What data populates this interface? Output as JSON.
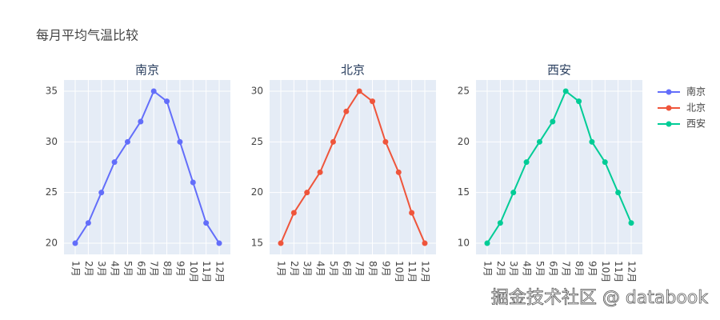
{
  "title": "每月平均气温比较",
  "watermark": "掘金技术社区 @ databook",
  "chart_data": [
    {
      "type": "line",
      "title": "南京",
      "categories": [
        "1月",
        "2月",
        "3月",
        "4月",
        "5月",
        "6月",
        "7月",
        "8月",
        "9月",
        "10月",
        "11月",
        "12月"
      ],
      "series": [
        {
          "name": "南京",
          "color": "#636efa",
          "values": [
            20,
            22,
            25,
            28,
            30,
            32,
            35,
            34,
            30,
            26,
            22,
            20
          ]
        }
      ],
      "ylim": [
        18.9,
        36.1
      ],
      "yticks": [
        20,
        25,
        30,
        35
      ],
      "grid": true
    },
    {
      "type": "line",
      "title": "北京",
      "categories": [
        "1月",
        "2月",
        "3月",
        "4月",
        "5月",
        "6月",
        "7月",
        "8月",
        "9月",
        "10月",
        "11月",
        "12月"
      ],
      "series": [
        {
          "name": "北京",
          "color": "#ef553b",
          "values": [
            15,
            18,
            20,
            22,
            25,
            28,
            30,
            29,
            25,
            22,
            18,
            15
          ]
        }
      ],
      "ylim": [
        13.9,
        31.1
      ],
      "yticks": [
        15,
        20,
        25,
        30
      ],
      "grid": true
    },
    {
      "type": "line",
      "title": "西安",
      "categories": [
        "1月",
        "2月",
        "3月",
        "4月",
        "5月",
        "6月",
        "7月",
        "8月",
        "9月",
        "10月",
        "11月",
        "12月"
      ],
      "series": [
        {
          "name": "西安",
          "color": "#00cc96",
          "values": [
            10,
            12,
            15,
            18,
            20,
            22,
            25,
            24,
            20,
            18,
            15,
            12
          ]
        }
      ],
      "ylim": [
        8.9,
        26.1
      ],
      "yticks": [
        10,
        15,
        20,
        25
      ],
      "grid": true
    }
  ]
}
